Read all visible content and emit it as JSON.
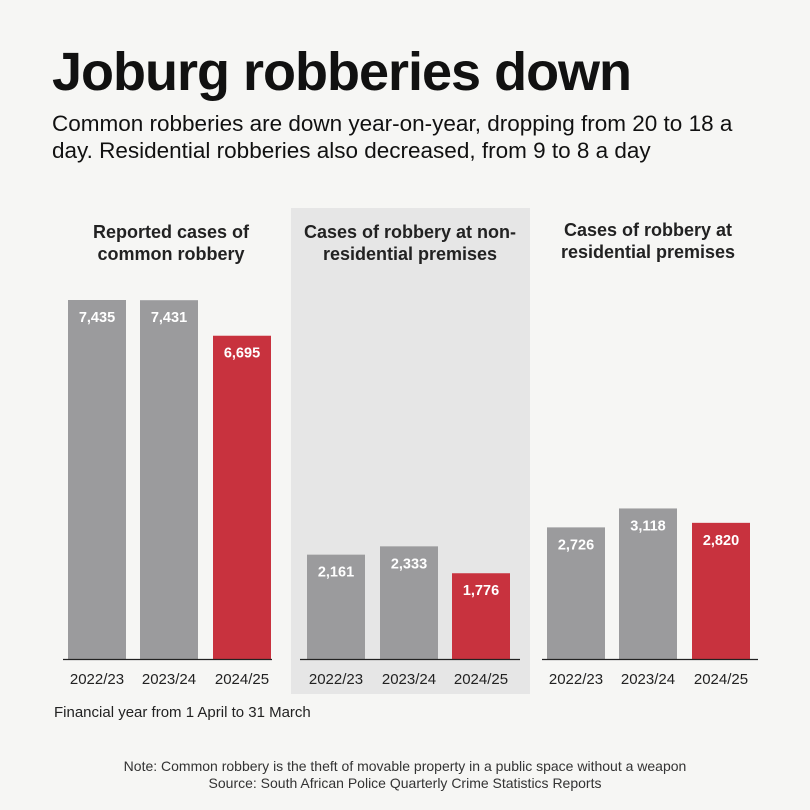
{
  "header": {
    "title": "Joburg robberies down",
    "subtitle": "Common robberies are down year-on-year, dropping from 20 to 18 a day. Residential robberies also decreased, from 9 to 8 a day"
  },
  "colors": {
    "background": "#f6f6f4",
    "bar_grey": "#9b9b9d",
    "bar_red": "#c8323e",
    "panel_highlight": "#e6e6e6"
  },
  "chart_data": [
    {
      "type": "bar",
      "title": "Reported cases of common robbery",
      "categories": [
        "2022/23",
        "2023/24",
        "2024/25"
      ],
      "values": [
        7435,
        7431,
        6695
      ],
      "value_labels": [
        "7,435",
        "7,431",
        "6,695"
      ],
      "highlight_index": 2,
      "ylim": [
        0,
        7435
      ]
    },
    {
      "type": "bar",
      "title": "Cases of robbery at non-residential premises",
      "categories": [
        "2022/23",
        "2023/24",
        "2024/25"
      ],
      "values": [
        2161,
        2333,
        1776
      ],
      "value_labels": [
        "2,161",
        "2,333",
        "1,776"
      ],
      "highlight_index": 2,
      "ylim": [
        0,
        7435
      ]
    },
    {
      "type": "bar",
      "title": "Cases of robbery at residential premises",
      "categories": [
        "2022/23",
        "2023/24",
        "2024/25"
      ],
      "values": [
        2726,
        3118,
        2820
      ],
      "value_labels": [
        "2,726",
        "3,118",
        "2,820"
      ],
      "highlight_index": 2,
      "ylim": [
        0,
        7435
      ]
    }
  ],
  "notes": {
    "axis_note": "Financial year from 1 April to 31 March",
    "footnote": "Note: Common robbery is the theft of movable property in a public space without a weapon",
    "source": "Source: South African Police Quarterly Crime Statistics Reports"
  }
}
